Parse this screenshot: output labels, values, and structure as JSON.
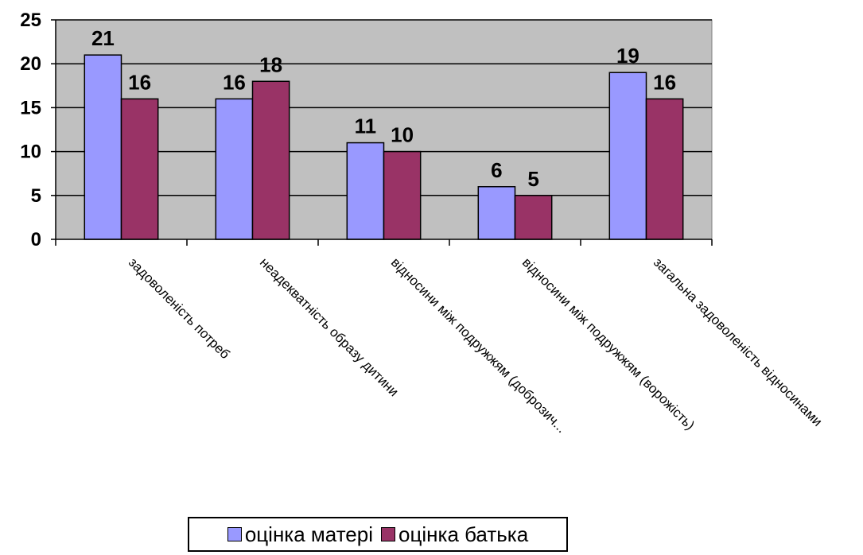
{
  "chart_data": {
    "type": "bar",
    "categories": [
      "задоволеність потреб",
      "неадекватність образу дитини",
      "відносини між подружжям (доброзич...",
      "відносини між подружжям (ворожість)",
      "загальна задоволеність відносинами"
    ],
    "series": [
      {
        "name": "оцінка матері",
        "values": [
          21,
          16,
          11,
          6,
          19
        ],
        "color": "#9999ff"
      },
      {
        "name": "оцінка батька",
        "values": [
          16,
          18,
          10,
          5,
          16
        ],
        "color": "#993366"
      }
    ],
    "ylim": [
      0,
      25
    ],
    "yticks": [
      "0",
      "5",
      "10",
      "15",
      "20",
      "25"
    ],
    "grid": true,
    "plot_background": "#c0c0c0",
    "legend_position": "bottom"
  }
}
